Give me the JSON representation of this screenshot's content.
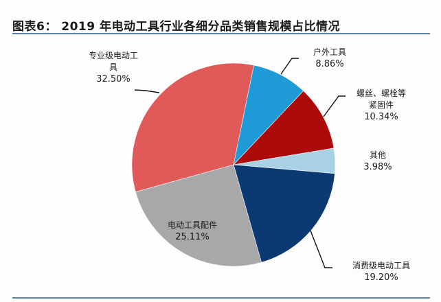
{
  "title": "图表6：  2019 年电动工具行业各细分品类销售规模占比情况",
  "chart_data": {
    "type": "pie",
    "title": "2019 年电动工具行业各细分品类销售规模占比情况",
    "figure_label": "图表6",
    "unit": "%",
    "start_angle_deg": 11.5,
    "direction": "clockwise",
    "slices": [
      {
        "label": "户外工具",
        "value": 8.86,
        "display": "8.86%",
        "color": "#1E9AD6"
      },
      {
        "label": "螺丝、螺栓等紧固件",
        "value": 10.34,
        "display": "10.34%",
        "color": "#AD0A0A"
      },
      {
        "label": "其他",
        "value": 3.98,
        "display": "3.98%",
        "color": "#A8D2E3"
      },
      {
        "label": "消费级电动工具",
        "value": 19.2,
        "display": "19.20%",
        "color": "#0B3A72"
      },
      {
        "label": "电动工具配件",
        "value": 25.11,
        "display": "25.11%",
        "color": "#A8A8AA"
      },
      {
        "label": "专业级电动工具",
        "value": 32.5,
        "display": "32.50%",
        "color": "#E05A5A"
      }
    ],
    "legend": "none (data labels with leader lines)"
  },
  "labels": {
    "outdoor": {
      "name": "户外工具",
      "pct": "8.86%"
    },
    "fastener": {
      "name1": "螺丝、螺栓等",
      "name2": "紧固件",
      "pct": "10.34%"
    },
    "other": {
      "name": "其他",
      "pct": "3.98%"
    },
    "consumer": {
      "name": "消费级电动工具",
      "pct": "19.20%"
    },
    "accessory": {
      "name": "电动工具配件",
      "pct": "25.11%"
    },
    "pro": {
      "name1": "专业级电动工",
      "name2": "具",
      "pct": "32.50%"
    }
  }
}
